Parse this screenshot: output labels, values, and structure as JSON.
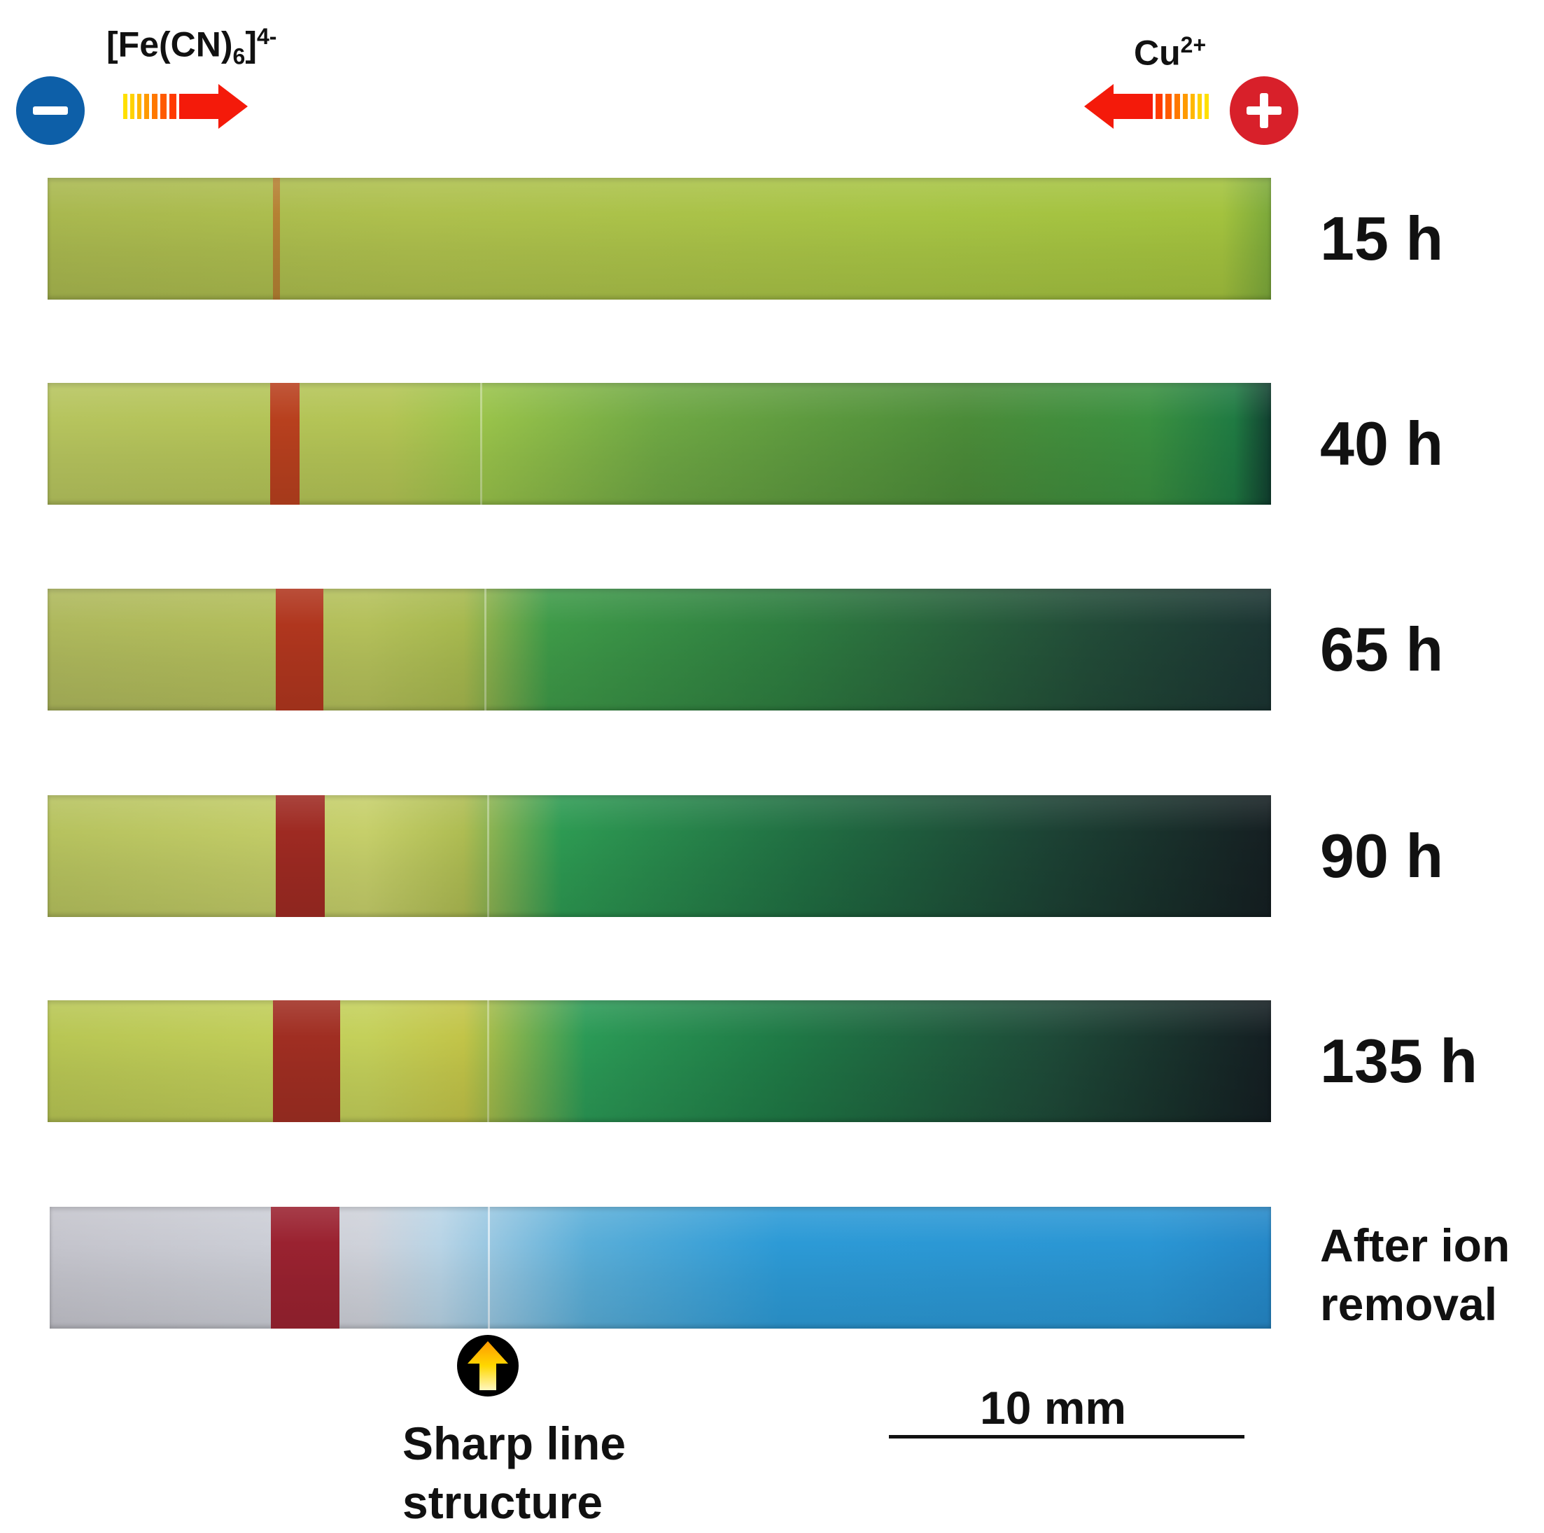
{
  "electrodes": {
    "negative": {
      "symbol": "−",
      "color": "#0d5fa8"
    },
    "positive": {
      "symbol": "+",
      "color": "#d8202a"
    }
  },
  "ions": {
    "anion": {
      "base": "[Fe(CN)",
      "subscript": "6",
      "close": "]",
      "charge": "4-"
    },
    "cation": {
      "base": "Cu",
      "charge": "2+"
    }
  },
  "strips": [
    {
      "time_label": "15 h"
    },
    {
      "time_label": "40 h"
    },
    {
      "time_label": "65 h"
    },
    {
      "time_label": "90 h"
    },
    {
      "time_label": "135 h"
    },
    {
      "time_label_line1": "After ion",
      "time_label_line2": "removal"
    }
  ],
  "marker": {
    "caption_line1": "Sharp line",
    "caption_line2": "structure",
    "icon": "up-arrow-icon"
  },
  "scale_bar": {
    "label": "10 mm"
  },
  "colors": {
    "precipitate_band": "#a8301e",
    "gel_blue": "#2a96d4",
    "gel_green": "#2e7e40",
    "gel_yellow": "#aec04d"
  }
}
